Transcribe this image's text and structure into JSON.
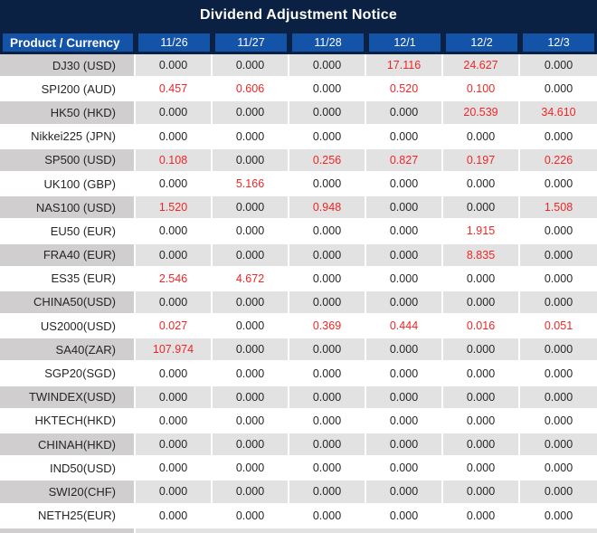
{
  "title": "Dividend Adjustment Notice",
  "colors": {
    "title_bar_bg": "#0A2143",
    "header_row_bg": "#1353A8",
    "stripe_label_bg": "#D0CECE",
    "stripe_value_bg": "#E3E2E2",
    "value_text": "#262626",
    "nonzero_value_red": "#F02626"
  },
  "chart_data": {
    "type": "table",
    "title": "Dividend Adjustment Notice",
    "columns": [
      "Product / Currency",
      "11/26",
      "11/27",
      "11/28",
      "12/1",
      "12/2",
      "12/3"
    ],
    "zero_value": "0.000",
    "highlight_rule": "non-zero values rendered in red",
    "rows": [
      {
        "product": "DJ30 (USD)",
        "values": [
          "0.000",
          "0.000",
          "0.000",
          "17.116",
          "24.627",
          "0.000"
        ]
      },
      {
        "product": "SPI200 (AUD)",
        "values": [
          "0.457",
          "0.606",
          "0.000",
          "0.520",
          "0.100",
          "0.000"
        ]
      },
      {
        "product": "HK50 (HKD)",
        "values": [
          "0.000",
          "0.000",
          "0.000",
          "0.000",
          "20.539",
          "34.610"
        ]
      },
      {
        "product": "Nikkei225 (JPN)",
        "values": [
          "0.000",
          "0.000",
          "0.000",
          "0.000",
          "0.000",
          "0.000"
        ]
      },
      {
        "product": "SP500 (USD)",
        "values": [
          "0.108",
          "0.000",
          "0.256",
          "0.827",
          "0.197",
          "0.226"
        ]
      },
      {
        "product": "UK100 (GBP)",
        "values": [
          "0.000",
          "5.166",
          "0.000",
          "0.000",
          "0.000",
          "0.000"
        ]
      },
      {
        "product": "NAS100 (USD)",
        "values": [
          "1.520",
          "0.000",
          "0.948",
          "0.000",
          "0.000",
          "1.508"
        ]
      },
      {
        "product": "EU50 (EUR)",
        "values": [
          "0.000",
          "0.000",
          "0.000",
          "0.000",
          "1.915",
          "0.000"
        ]
      },
      {
        "product": "FRA40 (EUR)",
        "values": [
          "0.000",
          "0.000",
          "0.000",
          "0.000",
          "8.835",
          "0.000"
        ]
      },
      {
        "product": "ES35 (EUR)",
        "values": [
          "2.546",
          "4.672",
          "0.000",
          "0.000",
          "0.000",
          "0.000"
        ]
      },
      {
        "product": "CHINA50(USD)",
        "values": [
          "0.000",
          "0.000",
          "0.000",
          "0.000",
          "0.000",
          "0.000"
        ]
      },
      {
        "product": "US2000(USD)",
        "values": [
          "0.027",
          "0.000",
          "0.369",
          "0.444",
          "0.016",
          "0.051"
        ]
      },
      {
        "product": "SA40(ZAR)",
        "values": [
          "107.974",
          "0.000",
          "0.000",
          "0.000",
          "0.000",
          "0.000"
        ]
      },
      {
        "product": "SGP20(SGD)",
        "values": [
          "0.000",
          "0.000",
          "0.000",
          "0.000",
          "0.000",
          "0.000"
        ]
      },
      {
        "product": "TWINDEX(USD)",
        "values": [
          "0.000",
          "0.000",
          "0.000",
          "0.000",
          "0.000",
          "0.000"
        ]
      },
      {
        "product": "HKTECH(HKD)",
        "values": [
          "0.000",
          "0.000",
          "0.000",
          "0.000",
          "0.000",
          "0.000"
        ]
      },
      {
        "product": "CHINAH(HKD)",
        "values": [
          "0.000",
          "0.000",
          "0.000",
          "0.000",
          "0.000",
          "0.000"
        ]
      },
      {
        "product": "IND50(USD)",
        "values": [
          "0.000",
          "0.000",
          "0.000",
          "0.000",
          "0.000",
          "0.000"
        ]
      },
      {
        "product": "SWI20(CHF)",
        "values": [
          "0.000",
          "0.000",
          "0.000",
          "0.000",
          "0.000",
          "0.000"
        ]
      },
      {
        "product": "NETH25(EUR)",
        "values": [
          "0.000",
          "0.000",
          "0.000",
          "0.000",
          "0.000",
          "0.000"
        ]
      }
    ]
  }
}
